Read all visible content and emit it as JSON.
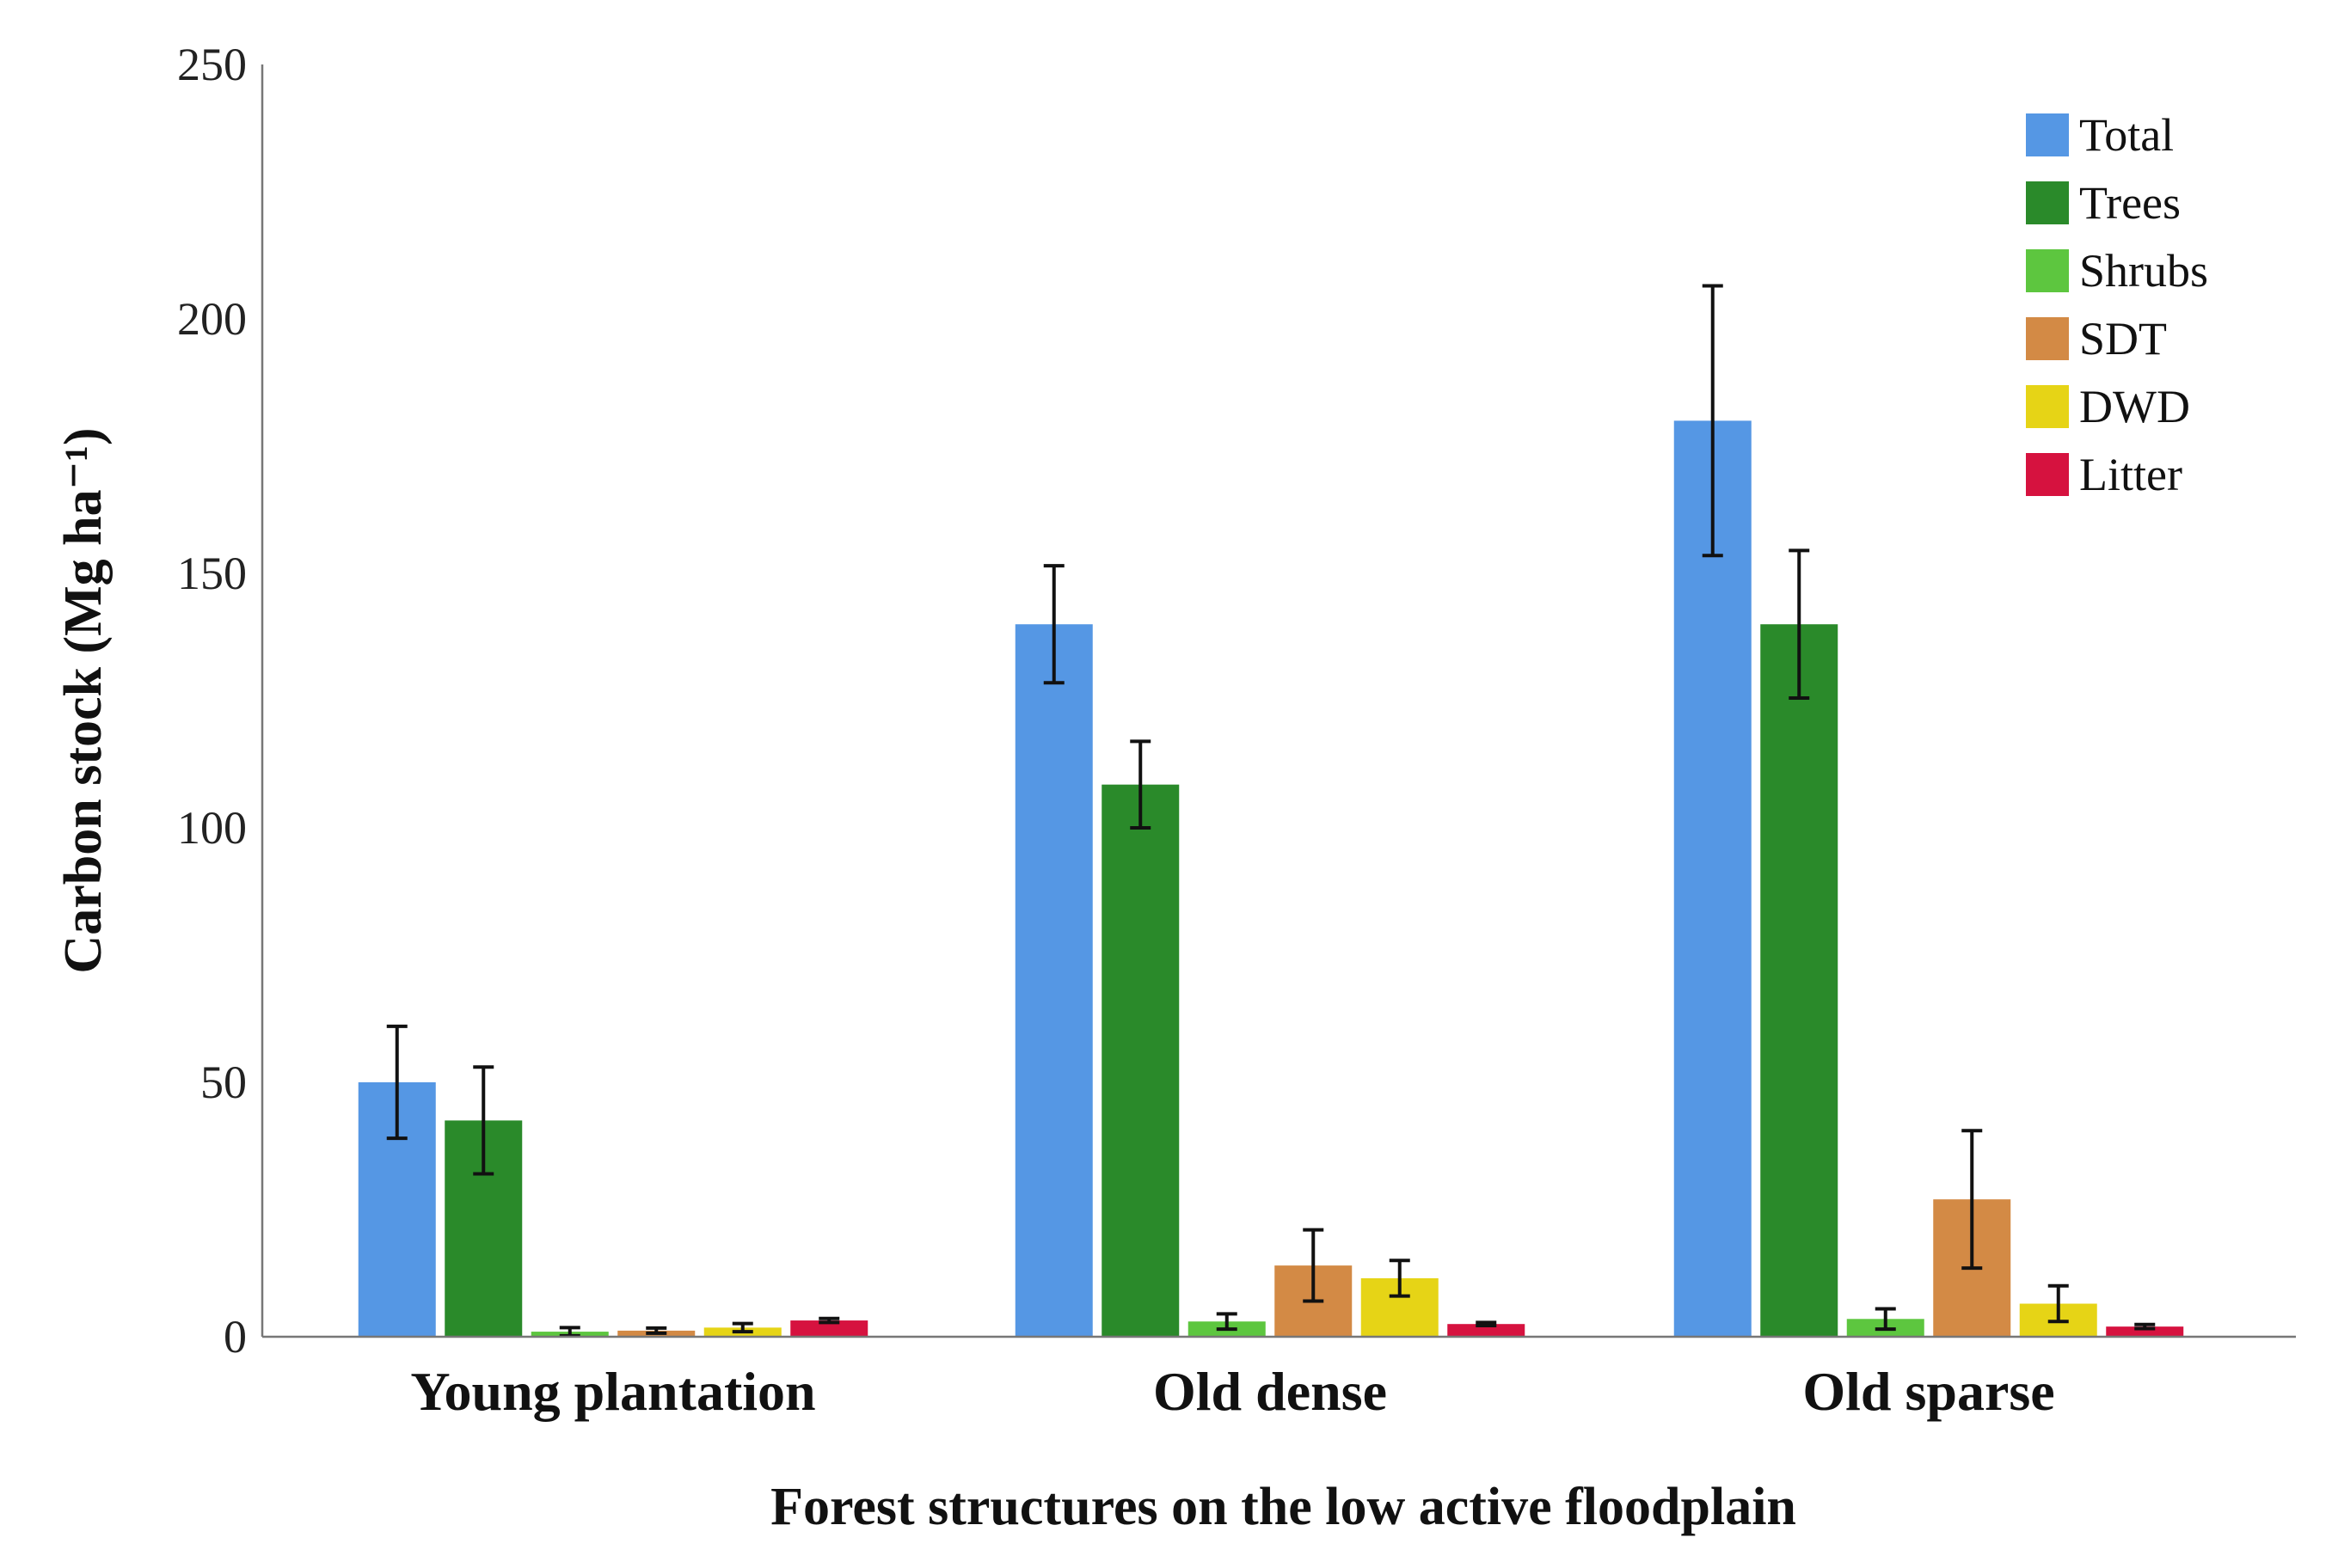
{
  "chart_data": {
    "type": "bar",
    "title": "",
    "xlabel": "Forest structures on the low active floodplain",
    "ylabel": "Carbon stock (Mg ha⁻¹)",
    "ylim": [
      0,
      250
    ],
    "yticks": [
      0,
      50,
      100,
      150,
      200,
      250
    ],
    "yticklabels": [
      "0",
      "50",
      "100",
      "150",
      "200",
      "250"
    ],
    "categories": [
      "Young plantation",
      "Old dense",
      "Old sparse"
    ],
    "legend_position": "top-right",
    "series": [
      {
        "name": "Total",
        "color": "#5597e4",
        "values": [
          50,
          140,
          180
        ],
        "errors": [
          11,
          11.5,
          26.5
        ]
      },
      {
        "name": "Trees",
        "color": "#2a8a2a",
        "values": [
          42.5,
          108.5,
          140
        ],
        "errors": [
          10.5,
          8.5,
          14.5
        ]
      },
      {
        "name": "Shrubs",
        "color": "#5dc63f",
        "values": [
          1,
          3,
          3.5
        ],
        "errors": [
          0.8,
          1.5,
          2
        ]
      },
      {
        "name": "SDT",
        "color": "#d38a45",
        "values": [
          1.2,
          14,
          27
        ],
        "errors": [
          0.5,
          7,
          13.5
        ]
      },
      {
        "name": "DWD",
        "color": "#e6d416",
        "values": [
          1.8,
          11.5,
          6.5
        ],
        "errors": [
          0.8,
          3.5,
          3.5
        ]
      },
      {
        "name": "Litter",
        "color": "#d6123f",
        "values": [
          3.2,
          2.5,
          2
        ],
        "errors": [
          0.4,
          0.3,
          0.4
        ]
      }
    ]
  }
}
